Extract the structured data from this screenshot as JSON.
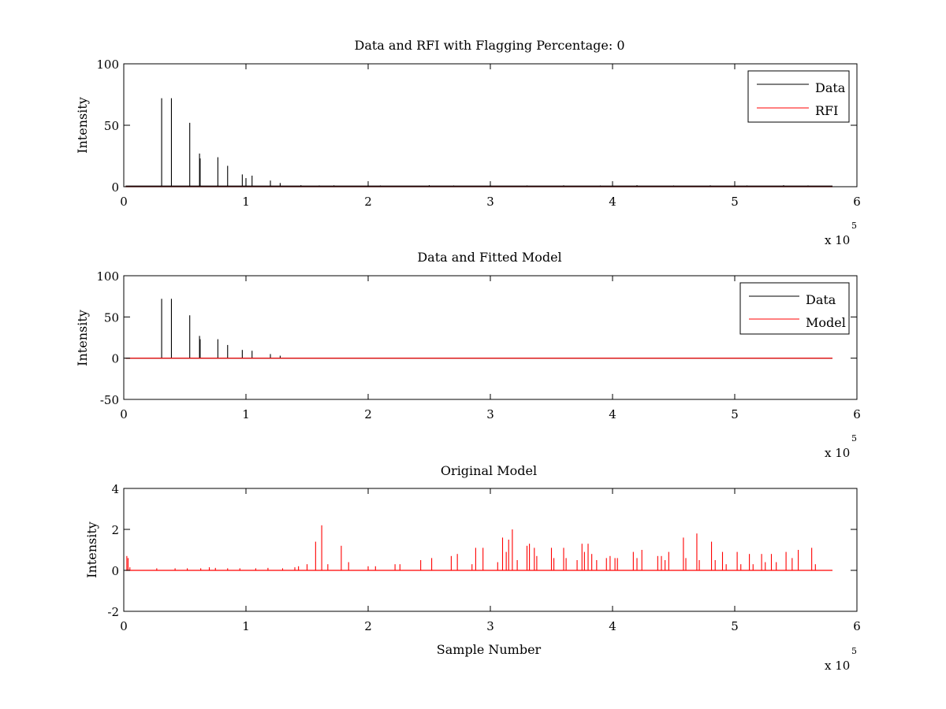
{
  "figure": {
    "colors": {
      "data": "#000000",
      "rfi": "#ff0000",
      "model": "#ff0000",
      "axes": "#000000",
      "background": "#ffffff"
    }
  },
  "chart_data": [
    {
      "type": "line",
      "title": "Data and RFI with Flagging Percentage: 0",
      "xlabel": "",
      "ylabel": "Intensity",
      "xlim": [
        0,
        600000
      ],
      "ylim": [
        0,
        100
      ],
      "xticks": [
        0,
        1,
        2,
        3,
        4,
        5,
        6
      ],
      "yticks": [
        0,
        50,
        100
      ],
      "x_multiplier_base": "x 10",
      "x_multiplier_exp": "5",
      "grid": false,
      "legend": {
        "placement": "top-right",
        "entries": [
          "Data",
          "RFI"
        ]
      },
      "series": [
        {
          "name": "Data",
          "color": "#000000",
          "baseline": 0.5,
          "x_end": 580000,
          "spikes": [
            [
              31000,
              72
            ],
            [
              39000,
              72
            ],
            [
              54000,
              52
            ],
            [
              62000,
              27
            ],
            [
              62500,
              23
            ],
            [
              77000,
              24
            ],
            [
              85000,
              17
            ],
            [
              97000,
              10
            ],
            [
              100000,
              7
            ],
            [
              105000,
              9
            ],
            [
              120000,
              5
            ],
            [
              128000,
              3
            ],
            [
              145000,
              1.2
            ],
            [
              160000,
              1
            ],
            [
              172000,
              1.1
            ],
            [
              210000,
              1
            ],
            [
              250000,
              1.2
            ],
            [
              270000,
              1
            ],
            [
              300000,
              1.2
            ],
            [
              330000,
              1
            ],
            [
              360000,
              1.1
            ],
            [
              390000,
              1
            ],
            [
              420000,
              1.2
            ],
            [
              450000,
              1
            ],
            [
              480000,
              1.1
            ],
            [
              510000,
              1
            ],
            [
              540000,
              1.2
            ],
            [
              560000,
              1
            ]
          ]
        },
        {
          "name": "RFI",
          "color": "#ff0000",
          "baseline": 0,
          "x_end": 580000,
          "spikes": []
        }
      ]
    },
    {
      "type": "line",
      "title": "Data and Fitted Model",
      "xlabel": "",
      "ylabel": "Intensity",
      "xlim": [
        0,
        600000
      ],
      "ylim": [
        -50,
        100
      ],
      "xticks": [
        0,
        1,
        2,
        3,
        4,
        5,
        6
      ],
      "yticks": [
        -50,
        0,
        50,
        100
      ],
      "x_multiplier_base": "x 10",
      "x_multiplier_exp": "5",
      "grid": false,
      "legend": {
        "placement": "top-right",
        "entries": [
          "Data",
          "Model"
        ]
      },
      "series": [
        {
          "name": "Data",
          "color": "#000000",
          "baseline": 0,
          "x_end": 580000,
          "spikes": [
            [
              31000,
              72
            ],
            [
              39000,
              72
            ],
            [
              54000,
              52
            ],
            [
              62000,
              27
            ],
            [
              62500,
              23
            ],
            [
              77000,
              23
            ],
            [
              85000,
              16
            ],
            [
              97000,
              10
            ],
            [
              105000,
              9
            ],
            [
              120000,
              5
            ],
            [
              128000,
              3
            ]
          ]
        },
        {
          "name": "Model",
          "color": "#ff0000",
          "baseline": 0,
          "x_end": 580000,
          "spikes": []
        }
      ]
    },
    {
      "type": "line",
      "title": "Original Model",
      "xlabel": "Sample Number",
      "ylabel": "Intensity",
      "xlim": [
        0,
        600000
      ],
      "ylim": [
        -2,
        4
      ],
      "xticks": [
        0,
        1,
        2,
        3,
        4,
        5,
        6
      ],
      "yticks": [
        -2,
        0,
        2,
        4
      ],
      "x_multiplier_base": "x 10",
      "x_multiplier_exp": "5",
      "grid": false,
      "legend": null,
      "series": [
        {
          "name": "",
          "color": "#ff0000",
          "baseline": 0,
          "x_end": 580000,
          "spikes": [
            [
              2500,
              0.7
            ],
            [
              3500,
              0.6
            ],
            [
              5000,
              0.15
            ],
            [
              27000,
              0.1
            ],
            [
              42000,
              0.1
            ],
            [
              52000,
              0.1
            ],
            [
              63000,
              0.1
            ],
            [
              70000,
              0.15
            ],
            [
              75000,
              0.12
            ],
            [
              85000,
              0.1
            ],
            [
              95000,
              0.1
            ],
            [
              108000,
              0.1
            ],
            [
              118000,
              0.12
            ],
            [
              130000,
              0.1
            ],
            [
              140000,
              0.15
            ],
            [
              143000,
              0.2
            ],
            [
              150000,
              0.3
            ],
            [
              157000,
              1.4
            ],
            [
              162000,
              2.2
            ],
            [
              167000,
              0.3
            ],
            [
              178000,
              1.2
            ],
            [
              184000,
              0.4
            ],
            [
              200000,
              0.2
            ],
            [
              206000,
              0.2
            ],
            [
              222000,
              0.3
            ],
            [
              226000,
              0.3
            ],
            [
              243000,
              0.5
            ],
            [
              252000,
              0.6
            ],
            [
              268000,
              0.7
            ],
            [
              273000,
              0.8
            ],
            [
              285000,
              0.3
            ],
            [
              288000,
              1.1
            ],
            [
              294000,
              1.1
            ],
            [
              306000,
              0.4
            ],
            [
              310000,
              1.6
            ],
            [
              313000,
              0.9
            ],
            [
              315000,
              1.5
            ],
            [
              318000,
              2.0
            ],
            [
              322000,
              0.5
            ],
            [
              330000,
              1.2
            ],
            [
              332000,
              1.3
            ],
            [
              336000,
              1.1
            ],
            [
              338000,
              0.7
            ],
            [
              350000,
              1.1
            ],
            [
              352000,
              0.6
            ],
            [
              360000,
              1.1
            ],
            [
              362000,
              0.6
            ],
            [
              371000,
              0.5
            ],
            [
              375000,
              1.3
            ],
            [
              377000,
              0.9
            ],
            [
              380000,
              1.3
            ],
            [
              383000,
              0.8
            ],
            [
              387000,
              0.5
            ],
            [
              395000,
              0.6
            ],
            [
              398000,
              0.7
            ],
            [
              402000,
              0.6
            ],
            [
              404000,
              0.6
            ],
            [
              417000,
              0.9
            ],
            [
              420000,
              0.6
            ],
            [
              424000,
              1.0
            ],
            [
              437000,
              0.7
            ],
            [
              440000,
              0.7
            ],
            [
              443000,
              0.5
            ],
            [
              446000,
              0.9
            ],
            [
              458000,
              1.6
            ],
            [
              460000,
              0.6
            ],
            [
              469000,
              1.8
            ],
            [
              471000,
              0.5
            ],
            [
              481000,
              1.4
            ],
            [
              484000,
              0.5
            ],
            [
              490000,
              0.9
            ],
            [
              493000,
              0.3
            ],
            [
              502000,
              0.9
            ],
            [
              505000,
              0.3
            ],
            [
              512000,
              0.8
            ],
            [
              515000,
              0.3
            ],
            [
              522000,
              0.8
            ],
            [
              525000,
              0.4
            ],
            [
              530000,
              0.8
            ],
            [
              534000,
              0.4
            ],
            [
              542000,
              0.9
            ],
            [
              547000,
              0.6
            ],
            [
              552000,
              1.0
            ],
            [
              563000,
              1.1
            ],
            [
              566000,
              0.3
            ]
          ]
        }
      ]
    }
  ]
}
